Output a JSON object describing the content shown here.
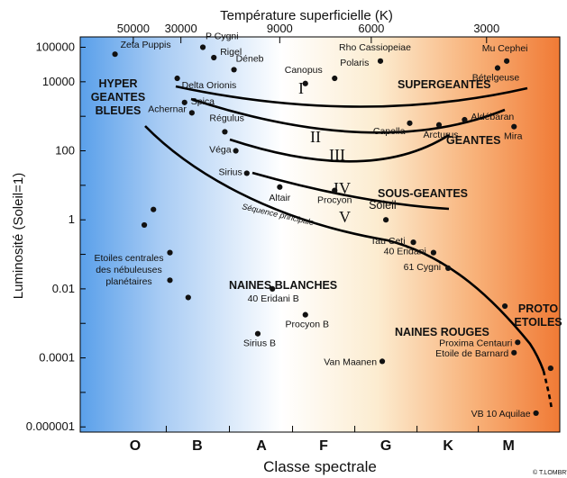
{
  "title_top": "Température superficielle (K)",
  "xlabel": "Classe spectrale",
  "ylabel": "Luminosité (Soleil=1)",
  "copyright": "© T.LOMBR'",
  "colors": {
    "hot": "#5aa0ea",
    "white": "#ffffff",
    "warm": "#fcecd0",
    "cool": "#f07a35",
    "curve": "#000000"
  },
  "temperature_ticks": [
    {
      "label": "50000",
      "klass": 0.55
    },
    {
      "label": "30000",
      "klass": 1.85
    },
    {
      "label": "9000",
      "klass": 4.55
    },
    {
      "label": "6000",
      "klass": 7.05
    },
    {
      "label": "3000",
      "klass": 10.2
    }
  ],
  "spectral_classes": [
    {
      "label": "O",
      "pos": 0.6
    },
    {
      "label": "B",
      "pos": 2.3
    },
    {
      "label": "A",
      "pos": 4.05
    },
    {
      "label": "F",
      "pos": 5.75
    },
    {
      "label": "G",
      "pos": 7.45
    },
    {
      "label": "K",
      "pos": 9.15
    },
    {
      "label": "M",
      "pos": 10.8
    }
  ],
  "luminosity_ticks": [
    {
      "label": "100000",
      "exp": 5
    },
    {
      "label": "10000",
      "exp": 4
    },
    {
      "label": "100",
      "exp": 2
    },
    {
      "label": "1",
      "exp": 0
    },
    {
      "label": "0.01",
      "exp": -2
    },
    {
      "label": "0.0001",
      "exp": -4
    },
    {
      "label": "0.000001",
      "exp": -6
    }
  ],
  "stars": [
    {
      "name": "Zeta Puppis",
      "x": 0.05,
      "y": 4.8
    },
    {
      "name": "P Cygni",
      "x": 2.45,
      "y": 5.0
    },
    {
      "name": "Rigel",
      "x": 2.75,
      "y": 4.7
    },
    {
      "name": "Déneb",
      "x": 3.3,
      "y": 4.35
    },
    {
      "name": "Rho Cassiopeiae",
      "x": 7.3,
      "y": 4.6
    },
    {
      "name": "Mu Cephei",
      "x": 10.75,
      "y": 4.6
    },
    {
      "name": "Bételgeuse",
      "x": 10.5,
      "y": 4.4
    },
    {
      "name": "Polaris",
      "x": 6.05,
      "y": 4.1
    },
    {
      "name": "Canopus",
      "x": 5.25,
      "y": 3.95
    },
    {
      "name": "Delta Orionis",
      "x": 1.75,
      "y": 4.1
    },
    {
      "name": "Spica",
      "x": 1.95,
      "y": 3.4
    },
    {
      "name": "Achernar",
      "x": 2.15,
      "y": 3.1
    },
    {
      "name": "Régulus",
      "x": 3.05,
      "y": 2.55
    },
    {
      "name": "Capella",
      "x": 8.1,
      "y": 2.8
    },
    {
      "name": "Arcturus",
      "x": 8.9,
      "y": 2.75
    },
    {
      "name": "Aldébaran",
      "x": 9.6,
      "y": 2.9
    },
    {
      "name": "Mira",
      "x": 10.95,
      "y": 2.7
    },
    {
      "name": "Véga",
      "x": 3.35,
      "y": 2.0
    },
    {
      "name": "Sirius",
      "x": 3.65,
      "y": 1.35
    },
    {
      "name": "Altair",
      "x": 4.55,
      "y": 0.95
    },
    {
      "name": "Procyon",
      "x": 6.05,
      "y": 0.85
    },
    {
      "name": "Soleil",
      "x": 7.45,
      "y": 0.0
    },
    {
      "name": "Tau Ceti",
      "x": 8.2,
      "y": -0.65
    },
    {
      "name": "40 Eridani",
      "x": 8.75,
      "y": -0.95
    },
    {
      "name": "61 Cygni",
      "x": 9.15,
      "y": -1.4
    },
    {
      "name": "40 Eridani B",
      "x": 4.35,
      "y": -2.0
    },
    {
      "name": "Procyon B",
      "x": 5.25,
      "y": -2.75
    },
    {
      "name": "Sirius B",
      "x": 3.95,
      "y": -3.3
    },
    {
      "name": "Van Maanen",
      "x": 7.35,
      "y": -4.1
    },
    {
      "name": "Proxima Centauri",
      "x": 11.05,
      "y": -3.55
    },
    {
      "name": "Etoile de Barnard",
      "x": 10.95,
      "y": -3.85
    },
    {
      "name": "VB 10 Aquilae",
      "x": 11.55,
      "y": -5.6
    }
  ],
  "extra_dots": [
    {
      "x": 1.1,
      "y": 0.3
    },
    {
      "x": 0.85,
      "y": -0.15
    },
    {
      "x": 1.55,
      "y": -0.95
    },
    {
      "x": 1.55,
      "y": -1.75
    },
    {
      "x": 2.05,
      "y": -2.25
    },
    {
      "x": 10.7,
      "y": -2.5
    },
    {
      "x": 11.95,
      "y": -4.3
    }
  ],
  "regions": {
    "hypergiants": [
      "HYPER",
      "GEANTES",
      "BLEUES"
    ],
    "supergiants": "SUPERGEANTES",
    "giants": "GEANTES",
    "subgiants": "SOUS-GEANTES",
    "white_dwarfs": "NAINES BLANCHES",
    "red_dwarfs": "NAINES ROUGES",
    "proto_stars": [
      "PROTO",
      "ETOILES"
    ],
    "nebula_stars": [
      "Etoiles centrales",
      "des nébuleuses",
      "planétaires"
    ],
    "main_sequence": "Séquence principale"
  },
  "luminosity_classes": [
    "I",
    "II",
    "III",
    "IV",
    "V"
  ]
}
